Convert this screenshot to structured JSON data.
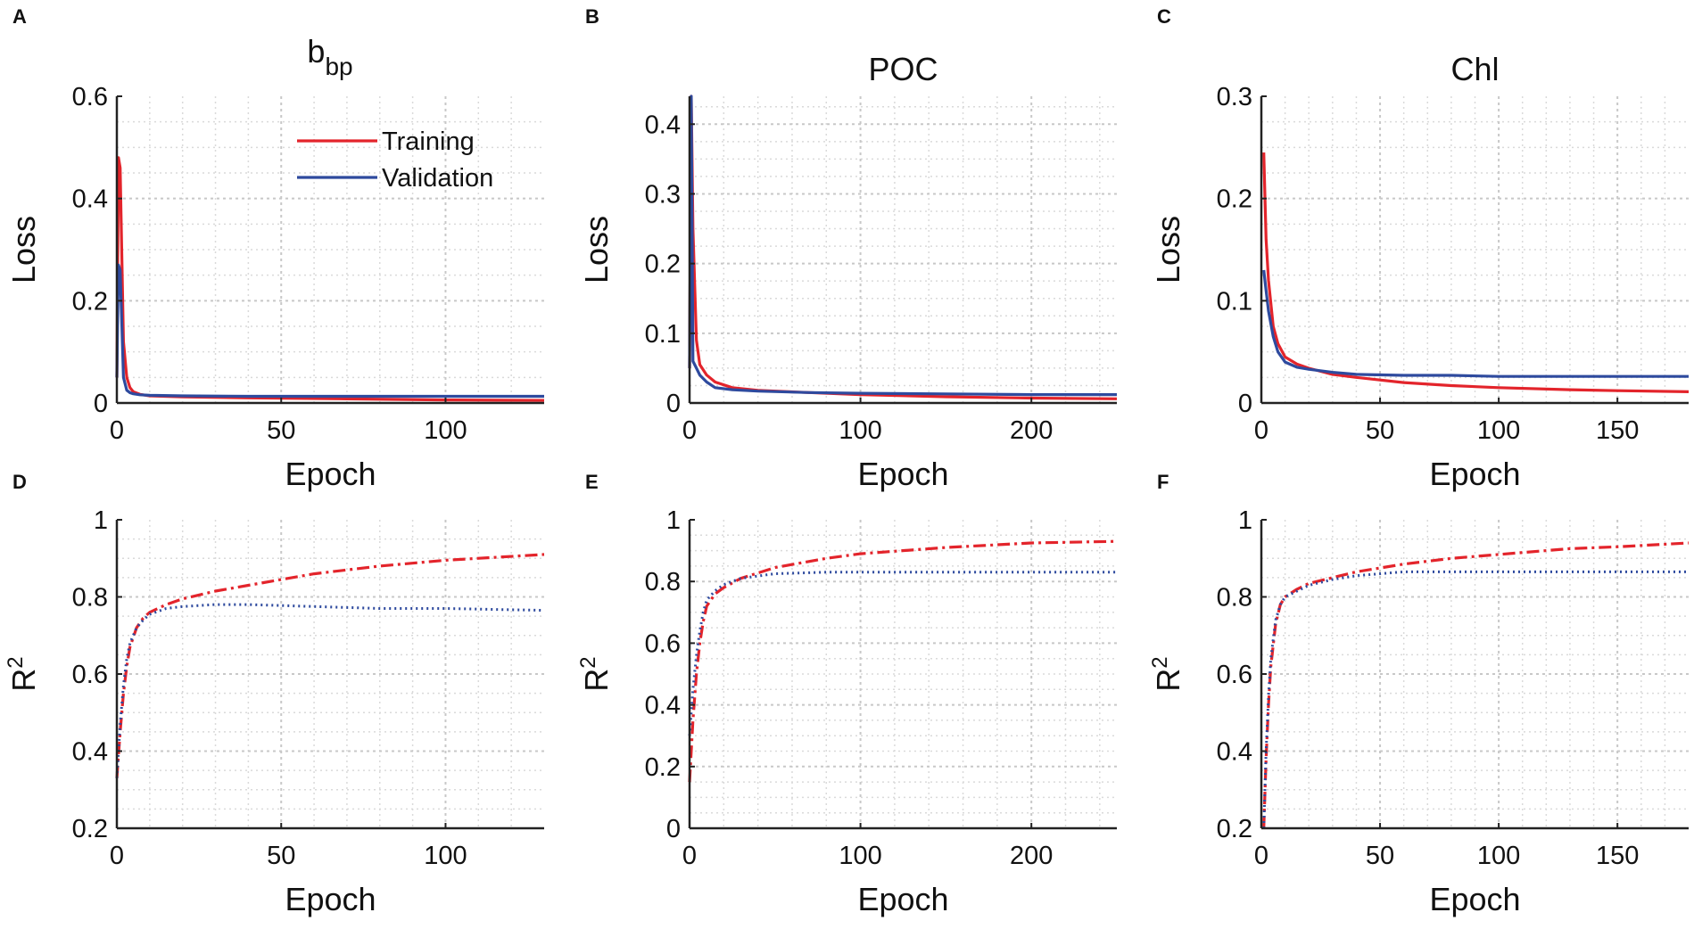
{
  "colors": {
    "training": "#e3242b",
    "validation": "#2e4a9e"
  },
  "legend": {
    "training": "Training",
    "validation": "Validation"
  },
  "chart_data": [
    {
      "panel": "A",
      "type": "line",
      "title_base": "b",
      "title_sub": "bp",
      "xlabel": "Epoch",
      "ylabel": "Loss",
      "xlim": [
        0,
        130
      ],
      "ylim": [
        0,
        0.6
      ],
      "xticks": [
        0,
        50,
        100
      ],
      "yticks": [
        0,
        0.2,
        0.4,
        0.6
      ],
      "xtick_labels": [
        "0",
        "50",
        "100"
      ],
      "ytick_labels": [
        "0",
        "0.2",
        "0.4",
        "0.6"
      ],
      "xminor_step": 10,
      "yminor_step": 0.05,
      "legend": true,
      "series": [
        {
          "name": "Training",
          "style": "solid",
          "x": [
            0,
            0.5,
            1,
            2,
            3,
            4,
            5,
            7,
            10,
            20,
            40,
            70,
            100,
            130
          ],
          "y": [
            0.05,
            0.48,
            0.46,
            0.12,
            0.05,
            0.03,
            0.022,
            0.017,
            0.014,
            0.012,
            0.01,
            0.008,
            0.006,
            0.005
          ]
        },
        {
          "name": "Validation",
          "style": "solid",
          "x": [
            0,
            0.5,
            1,
            2,
            3,
            4,
            5,
            7,
            10,
            20,
            40,
            70,
            100,
            130
          ],
          "y": [
            0.05,
            0.27,
            0.26,
            0.05,
            0.025,
            0.02,
            0.018,
            0.016,
            0.015,
            0.014,
            0.013,
            0.013,
            0.013,
            0.013
          ]
        }
      ]
    },
    {
      "panel": "B",
      "type": "line",
      "title": "POC",
      "xlabel": "Epoch",
      "ylabel": "Loss",
      "xlim": [
        0,
        250
      ],
      "ylim": [
        0,
        0.44
      ],
      "xticks": [
        0,
        100,
        200
      ],
      "yticks": [
        0,
        0.1,
        0.2,
        0.3,
        0.4
      ],
      "xtick_labels": [
        "0",
        "100",
        "200"
      ],
      "ytick_labels": [
        "0",
        "0.1",
        "0.2",
        "0.3",
        "0.4"
      ],
      "xminor_step": 20,
      "yminor_step": 0.025,
      "legend": false,
      "series": [
        {
          "name": "Training",
          "style": "solid",
          "x": [
            0,
            1,
            2,
            4,
            6,
            10,
            15,
            25,
            40,
            70,
            100,
            150,
            200,
            250
          ],
          "y": [
            0.05,
            0.44,
            0.25,
            0.09,
            0.055,
            0.04,
            0.03,
            0.022,
            0.018,
            0.015,
            0.012,
            0.009,
            0.007,
            0.006
          ]
        },
        {
          "name": "Validation",
          "style": "solid",
          "x": [
            0,
            1,
            2,
            4,
            6,
            10,
            15,
            25,
            40,
            70,
            100,
            150,
            200,
            250
          ],
          "y": [
            0.05,
            0.44,
            0.06,
            0.05,
            0.04,
            0.03,
            0.022,
            0.019,
            0.017,
            0.015,
            0.014,
            0.013,
            0.012,
            0.012
          ]
        }
      ]
    },
    {
      "panel": "C",
      "type": "line",
      "title": "Chl",
      "xlabel": "Epoch",
      "ylabel": "Loss",
      "xlim": [
        0,
        180
      ],
      "ylim": [
        0,
        0.3
      ],
      "xticks": [
        0,
        50,
        100,
        150
      ],
      "yticks": [
        0,
        0.1,
        0.2,
        0.3
      ],
      "xtick_labels": [
        "0",
        "50",
        "100",
        "150"
      ],
      "ytick_labels": [
        "0",
        "0.1",
        "0.2",
        "0.3"
      ],
      "xminor_step": 10,
      "yminor_step": 0.025,
      "legend": false,
      "series": [
        {
          "name": "Training",
          "style": "solid",
          "x": [
            1,
            2,
            3,
            5,
            7,
            10,
            15,
            20,
            30,
            40,
            60,
            80,
            100,
            130,
            150,
            180
          ],
          "y": [
            0.245,
            0.16,
            0.12,
            0.075,
            0.058,
            0.045,
            0.038,
            0.034,
            0.028,
            0.025,
            0.02,
            0.017,
            0.015,
            0.013,
            0.012,
            0.011
          ]
        },
        {
          "name": "Validation",
          "style": "solid",
          "x": [
            1,
            2,
            3,
            5,
            7,
            10,
            15,
            20,
            30,
            40,
            60,
            80,
            100,
            130,
            150,
            180
          ],
          "y": [
            0.13,
            0.11,
            0.09,
            0.065,
            0.05,
            0.04,
            0.035,
            0.033,
            0.03,
            0.028,
            0.027,
            0.027,
            0.026,
            0.026,
            0.026,
            0.026
          ]
        }
      ]
    },
    {
      "panel": "D",
      "type": "line",
      "xlabel": "Epoch",
      "ylabel_base": "R",
      "ylabel_sup": "2",
      "xlim": [
        0,
        130
      ],
      "ylim": [
        0.2,
        1
      ],
      "xticks": [
        0,
        50,
        100
      ],
      "yticks": [
        0.2,
        0.4,
        0.6,
        0.8,
        1
      ],
      "xtick_labels": [
        "0",
        "50",
        "100"
      ],
      "ytick_labels": [
        "0.2",
        "0.4",
        "0.6",
        "0.8",
        "1"
      ],
      "xminor_step": 10,
      "yminor_step": 0.05,
      "legend": false,
      "series": [
        {
          "name": "Training",
          "style": "dashdot",
          "x": [
            0,
            1,
            2,
            3,
            4,
            6,
            8,
            10,
            15,
            20,
            30,
            40,
            60,
            80,
            100,
            130
          ],
          "y": [
            0.33,
            0.45,
            0.55,
            0.62,
            0.67,
            0.72,
            0.745,
            0.76,
            0.78,
            0.795,
            0.815,
            0.83,
            0.86,
            0.88,
            0.895,
            0.91
          ]
        },
        {
          "name": "Validation",
          "style": "dotted",
          "x": [
            0,
            1,
            2,
            3,
            4,
            6,
            8,
            10,
            15,
            20,
            30,
            40,
            60,
            80,
            100,
            130
          ],
          "y": [
            0.33,
            0.47,
            0.57,
            0.64,
            0.68,
            0.72,
            0.74,
            0.755,
            0.77,
            0.775,
            0.78,
            0.78,
            0.775,
            0.77,
            0.77,
            0.765
          ]
        }
      ]
    },
    {
      "panel": "E",
      "type": "line",
      "xlabel": "Epoch",
      "ylabel_base": "R",
      "ylabel_sup": "2",
      "xlim": [
        0,
        250
      ],
      "ylim": [
        0,
        1
      ],
      "xticks": [
        0,
        100,
        200
      ],
      "yticks": [
        0,
        0.2,
        0.4,
        0.6,
        0.8,
        1
      ],
      "xtick_labels": [
        "0",
        "100",
        "200"
      ],
      "ytick_labels": [
        "0",
        "0.2",
        "0.4",
        "0.6",
        "0.8",
        "1"
      ],
      "xminor_step": 20,
      "yminor_step": 0.05,
      "legend": false,
      "series": [
        {
          "name": "Training",
          "style": "dashdot",
          "x": [
            0,
            2,
            4,
            6,
            8,
            10,
            15,
            20,
            30,
            50,
            80,
            100,
            150,
            200,
            250
          ],
          "y": [
            0.15,
            0.35,
            0.5,
            0.6,
            0.67,
            0.72,
            0.76,
            0.78,
            0.81,
            0.845,
            0.875,
            0.89,
            0.91,
            0.925,
            0.93
          ]
        },
        {
          "name": "Validation",
          "style": "dotted",
          "x": [
            0,
            2,
            4,
            6,
            8,
            10,
            15,
            20,
            30,
            50,
            80,
            100,
            150,
            200,
            250
          ],
          "y": [
            0.3,
            0.45,
            0.56,
            0.64,
            0.7,
            0.74,
            0.77,
            0.79,
            0.81,
            0.825,
            0.83,
            0.83,
            0.83,
            0.83,
            0.83
          ]
        }
      ]
    },
    {
      "panel": "F",
      "type": "line",
      "xlabel": "Epoch",
      "ylabel_base": "R",
      "ylabel_sup": "2",
      "xlim": [
        0,
        180
      ],
      "ylim": [
        0.2,
        1
      ],
      "xticks": [
        0,
        50,
        100,
        150
      ],
      "yticks": [
        0.2,
        0.4,
        0.6,
        0.8,
        1
      ],
      "xtick_labels": [
        "0",
        "50",
        "100",
        "150"
      ],
      "ytick_labels": [
        "0.2",
        "0.4",
        "0.6",
        "0.8",
        "1"
      ],
      "xminor_step": 10,
      "yminor_step": 0.05,
      "legend": false,
      "series": [
        {
          "name": "Training",
          "style": "dashdot",
          "x": [
            1,
            2,
            3,
            4,
            6,
            8,
            10,
            15,
            20,
            30,
            40,
            60,
            80,
            100,
            130,
            150,
            180
          ],
          "y": [
            0.2,
            0.38,
            0.52,
            0.62,
            0.73,
            0.78,
            0.8,
            0.82,
            0.835,
            0.85,
            0.865,
            0.885,
            0.9,
            0.91,
            0.925,
            0.93,
            0.94
          ]
        },
        {
          "name": "Validation",
          "style": "dotted",
          "x": [
            1,
            2,
            3,
            4,
            6,
            8,
            10,
            15,
            20,
            30,
            40,
            60,
            80,
            100,
            130,
            150,
            180
          ],
          "y": [
            0.2,
            0.4,
            0.54,
            0.64,
            0.74,
            0.78,
            0.8,
            0.815,
            0.83,
            0.845,
            0.855,
            0.865,
            0.865,
            0.865,
            0.865,
            0.865,
            0.865
          ]
        }
      ]
    }
  ]
}
